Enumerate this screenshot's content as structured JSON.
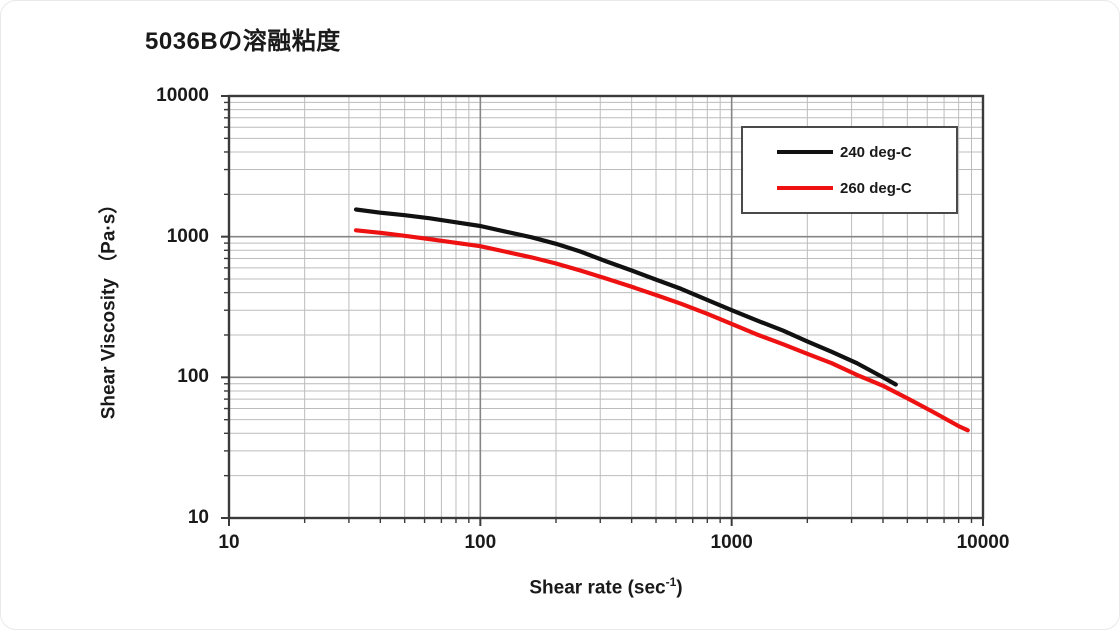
{
  "title": "5036Bの溶融粘度",
  "chart_data": {
    "type": "line",
    "title": "5036Bの溶融粘度",
    "x_scale": "log",
    "y_scale": "log",
    "xlabel": "Shear rate (sec⁻¹)",
    "xlabel_parts": {
      "prefix": "Shear rate (sec",
      "sup": "-1",
      "suffix": ")"
    },
    "ylabel": "Shear Viscosity （Pa·s）",
    "xlim": [
      10,
      10000
    ],
    "ylim": [
      10,
      10000
    ],
    "x_tick_labels": [
      "10",
      "100",
      "1000",
      "10000"
    ],
    "y_tick_labels": [
      "10000",
      "1000",
      "100",
      "10"
    ],
    "grid": "major and minor log gridlines on both axes",
    "legend_position": "inside top-right",
    "series": [
      {
        "name": "240 deg-C",
        "color": "#111111",
        "points": [
          [
            32,
            1560
          ],
          [
            40,
            1480
          ],
          [
            50,
            1420
          ],
          [
            63,
            1350
          ],
          [
            80,
            1265
          ],
          [
            100,
            1190
          ],
          [
            125,
            1090
          ],
          [
            160,
            990
          ],
          [
            200,
            890
          ],
          [
            250,
            785
          ],
          [
            315,
            670
          ],
          [
            400,
            575
          ],
          [
            500,
            495
          ],
          [
            630,
            425
          ],
          [
            800,
            355
          ],
          [
            1000,
            300
          ],
          [
            1250,
            255
          ],
          [
            1600,
            215
          ],
          [
            2000,
            180
          ],
          [
            2500,
            152
          ],
          [
            3150,
            126
          ],
          [
            4000,
            100
          ],
          [
            4500,
            89
          ]
        ]
      },
      {
        "name": "260 deg-C",
        "color": "#ee1111",
        "points": [
          [
            32,
            1110
          ],
          [
            40,
            1065
          ],
          [
            50,
            1015
          ],
          [
            63,
            960
          ],
          [
            80,
            905
          ],
          [
            100,
            855
          ],
          [
            125,
            785
          ],
          [
            160,
            712
          ],
          [
            200,
            645
          ],
          [
            250,
            575
          ],
          [
            315,
            505
          ],
          [
            400,
            440
          ],
          [
            500,
            385
          ],
          [
            630,
            333
          ],
          [
            800,
            283
          ],
          [
            1000,
            240
          ],
          [
            1250,
            203
          ],
          [
            1600,
            172
          ],
          [
            2000,
            147
          ],
          [
            2500,
            126
          ],
          [
            3150,
            104
          ],
          [
            4000,
            87
          ],
          [
            5000,
            71
          ],
          [
            6300,
            57
          ],
          [
            8000,
            45
          ],
          [
            8700,
            42
          ]
        ]
      }
    ]
  },
  "colors": {
    "minor_grid": "#bcbcbc",
    "major_grid": "#858585",
    "frame": "#3a3a3a",
    "tick": "#3a3a3a",
    "text": "#1a1a1a",
    "legend_border": "#4a4a4a"
  }
}
